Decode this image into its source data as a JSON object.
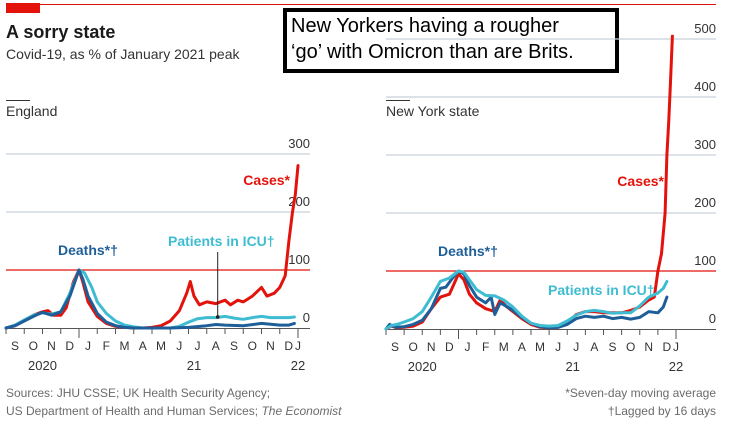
{
  "header": {
    "title": "A sorry state",
    "subtitle": "Covid-19, as % of January 2021 peak",
    "callout_line1": "New Yorkers having a rougher",
    "callout_line2": "‘go’ with Omicron than are Brits."
  },
  "footer": {
    "sources_line1": "Sources: JHU CSSE; UK Health Security Agency;",
    "sources_line2_prefix": "US Department of Health and Human Services; ",
    "sources_line2_italic": "The Economist",
    "note1": "*Seven-day moving average",
    "note2": "†Lagged by 16 days"
  },
  "colors": {
    "cases": "#e3120b",
    "deaths": "#1f5f99",
    "icu": "#3ebcd2",
    "reference_line": "#e3120b",
    "grid": "#c8d0d9",
    "accent": "#e3120b"
  },
  "chart_data": [
    {
      "type": "line",
      "title": "England",
      "xlabel": "",
      "ylabel": "% of January 2021 peak",
      "x_unit": "months since 1 Sep 2020",
      "xlim": [
        0,
        16
      ],
      "ylim": [
        0,
        300
      ],
      "yticks": [
        0,
        100,
        200,
        300
      ],
      "reference_line": 100,
      "grid": true,
      "month_ticks": [
        "S",
        "O",
        "N",
        "D",
        "J",
        "F",
        "M",
        "A",
        "M",
        "J",
        "J",
        "A",
        "S",
        "O",
        "N",
        "D",
        "J"
      ],
      "year_labels": [
        {
          "label": "2020",
          "x": 2
        },
        {
          "label": "21",
          "x": 10.3
        },
        {
          "label": "22",
          "x": 16
        }
      ],
      "series": [
        {
          "name": "Cases*",
          "key": "cases",
          "x": [
            0,
            0.5,
            1,
            1.5,
            2,
            2.3,
            2.6,
            3,
            3.3,
            3.7,
            4,
            4.2,
            4.5,
            5,
            5.5,
            6,
            6.5,
            7,
            7.5,
            8,
            8.5,
            9,
            9.5,
            9.9,
            10.1,
            10.3,
            10.6,
            11,
            11.5,
            12,
            12.3,
            12.7,
            13,
            13.5,
            14,
            14.3,
            14.7,
            15,
            15.3,
            15.5,
            15.7,
            15.85,
            16
          ],
          "y": [
            0,
            4,
            13,
            22,
            28,
            30,
            22,
            22,
            35,
            80,
            100,
            80,
            45,
            20,
            8,
            3,
            1,
            0,
            0,
            1,
            4,
            12,
            30,
            60,
            80,
            55,
            40,
            45,
            42,
            48,
            40,
            48,
            45,
            55,
            70,
            55,
            60,
            70,
            90,
            150,
            200,
            230,
            280
          ]
        },
        {
          "name": "Deaths*†",
          "key": "deaths",
          "x": [
            0,
            0.5,
            1,
            1.5,
            2,
            2.5,
            3,
            3.5,
            4,
            4.2,
            4.5,
            5,
            5.5,
            6,
            6.5,
            7,
            7.5,
            8,
            9,
            10,
            11,
            11.5,
            12,
            13,
            14,
            15,
            15.5,
            15.8
          ],
          "y": [
            0,
            4,
            12,
            20,
            27,
            22,
            28,
            55,
            100,
            85,
            55,
            25,
            10,
            4,
            1,
            0,
            0,
            0,
            0,
            1,
            4,
            6,
            5,
            4,
            8,
            5,
            5,
            8
          ]
        },
        {
          "name": "Patients in ICU†",
          "key": "icu",
          "x": [
            0,
            0.5,
            1,
            1.5,
            2,
            2.5,
            3,
            3.5,
            4,
            4.3,
            4.7,
            5,
            5.5,
            6,
            6.5,
            7,
            7.5,
            8,
            9,
            9.5,
            10,
            10.5,
            11,
            11.5,
            12,
            12.5,
            13,
            13.5,
            14,
            14.5,
            15,
            15.5,
            15.8
          ],
          "y": [
            0,
            5,
            14,
            22,
            26,
            24,
            28,
            60,
            100,
            95,
            70,
            45,
            25,
            12,
            5,
            2,
            0,
            0,
            0,
            3,
            10,
            16,
            18,
            18,
            20,
            17,
            15,
            18,
            20,
            18,
            18,
            18,
            19
          ]
        }
      ],
      "labels": {
        "cases": "Cases*",
        "deaths": "Deaths*†",
        "icu": "Patients in ICU†"
      }
    },
    {
      "type": "line",
      "title": "New York state",
      "xlabel": "",
      "ylabel": "% of January 2021 peak",
      "x_unit": "months since 1 Sep 2020",
      "xlim": [
        0,
        16
      ],
      "ylim": [
        0,
        500
      ],
      "yticks": [
        0,
        100,
        200,
        300,
        400,
        500
      ],
      "reference_line": 100,
      "grid": true,
      "month_ticks": [
        "S",
        "O",
        "N",
        "D",
        "J",
        "F",
        "M",
        "A",
        "M",
        "J",
        "J",
        "A",
        "S",
        "O",
        "N",
        "D",
        "J"
      ],
      "year_labels": [
        {
          "label": "2020",
          "x": 2
        },
        {
          "label": "21",
          "x": 10.3
        },
        {
          "label": "22",
          "x": 16
        }
      ],
      "series": [
        {
          "name": "Cases*",
          "key": "cases",
          "x": [
            0,
            0.3,
            0.6,
            1,
            1.5,
            2,
            2.5,
            3,
            3.5,
            4,
            4.3,
            4.6,
            5,
            5.5,
            6,
            6.3,
            6.6,
            7,
            7.5,
            8,
            8.5,
            9,
            9.5,
            10,
            10.5,
            11,
            11.5,
            12,
            12.5,
            13,
            13.5,
            14,
            14.5,
            14.8,
            15,
            15.2,
            15.4,
            15.5,
            15.6,
            15.7,
            15.8
          ],
          "y": [
            0,
            5,
            2,
            3,
            5,
            12,
            35,
            55,
            60,
            95,
            85,
            60,
            45,
            35,
            30,
            50,
            40,
            30,
            18,
            8,
            3,
            2,
            3,
            10,
            25,
            30,
            30,
            28,
            28,
            28,
            32,
            38,
            50,
            55,
            100,
            130,
            200,
            300,
            360,
            430,
            505
          ]
        },
        {
          "name": "Deaths*†",
          "key": "deaths",
          "x": [
            0,
            0.2,
            0.5,
            1,
            1.5,
            2,
            2.5,
            3,
            3.3,
            3.6,
            4,
            4.3,
            4.6,
            5,
            5.5,
            5.8,
            6,
            6.3,
            6.6,
            7,
            7.5,
            8,
            8.5,
            9,
            9.5,
            10,
            10.5,
            11,
            11.5,
            12,
            12.5,
            13,
            13.5,
            14,
            14.5,
            15,
            15.3,
            15.5
          ],
          "y": [
            0,
            8,
            3,
            4,
            8,
            15,
            35,
            70,
            72,
            85,
            100,
            95,
            75,
            55,
            45,
            55,
            25,
            45,
            40,
            32,
            20,
            10,
            4,
            2,
            3,
            8,
            18,
            22,
            20,
            22,
            18,
            20,
            17,
            20,
            30,
            28,
            38,
            55
          ]
        },
        {
          "name": "Patients in ICU†",
          "key": "icu",
          "x": [
            0,
            0.3,
            0.6,
            1,
            1.5,
            2,
            2.5,
            3,
            3.5,
            4,
            4.3,
            4.6,
            5,
            5.5,
            6,
            6.5,
            7,
            7.5,
            8,
            8.5,
            9,
            9.5,
            10,
            10.5,
            11,
            11.5,
            12,
            12.5,
            13,
            13.5,
            14,
            14.5,
            15,
            15.3,
            15.5
          ],
          "y": [
            0,
            6,
            8,
            12,
            18,
            30,
            55,
            82,
            88,
            100,
            98,
            85,
            68,
            58,
            57,
            50,
            38,
            22,
            10,
            6,
            5,
            6,
            14,
            24,
            30,
            32,
            30,
            27,
            28,
            28,
            40,
            55,
            62,
            70,
            82
          ]
        }
      ],
      "labels": {
        "cases": "Cases*",
        "deaths": "Deaths*†",
        "icu": "Patients in ICU†"
      }
    }
  ]
}
